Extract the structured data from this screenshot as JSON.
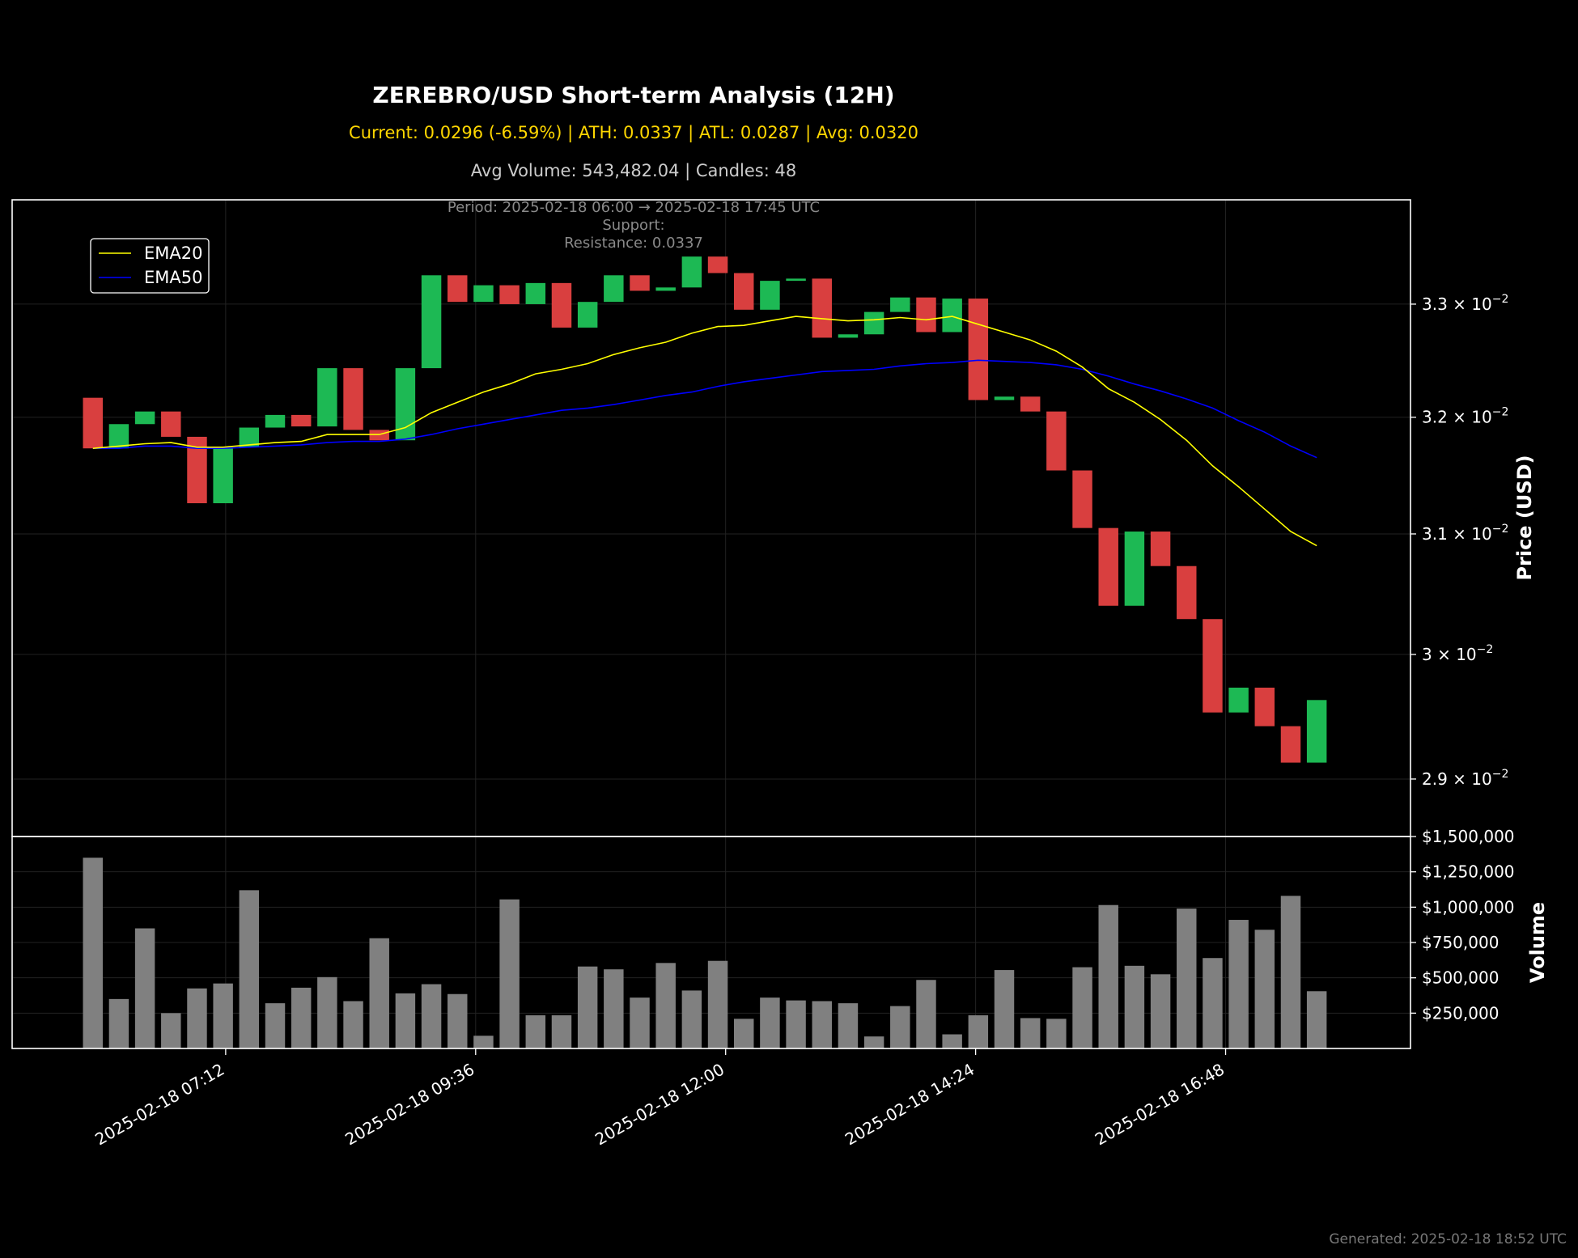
{
  "title": "ZEREBRO/USD Short-term Analysis (12H)",
  "subtitle_stats": "Current: 0.0296 (-6.59%) | ATH: 0.0337 | ATL: 0.0287 | Avg: 0.0320",
  "subtitle_volume": "Avg Volume: 543,482.04 | Candles: 48",
  "annotation": {
    "period": "Period: 2025-02-18 06:00 → 2025-02-18 17:45 UTC",
    "support": "Support:",
    "resistance": "Resistance: 0.0337"
  },
  "footer": "Generated: 2025-02-18 18:52 UTC",
  "colors": {
    "background": "#000000",
    "up": "#1db954",
    "down": "#d93f3f",
    "ema20": "#ffff00",
    "ema50": "#0000ff",
    "volume": "#808080",
    "title": "#ffffff",
    "stats": "#ffd700"
  },
  "chart_data": [
    {
      "type": "candlestick",
      "ylabel": "Price (USD)",
      "yscale": "log",
      "ylim": [
        0.02855,
        0.03395
      ],
      "xlim": [
        -3.1,
        50.6
      ],
      "y_ticks": [
        {
          "value": 0.029,
          "base": "2.9",
          "exp": "−2"
        },
        {
          "value": 0.03,
          "base": "3",
          "exp": "−2"
        },
        {
          "value": 0.031,
          "base": "3.1",
          "exp": "−2"
        },
        {
          "value": 0.032,
          "base": "3.2",
          "exp": "−2"
        },
        {
          "value": 0.033,
          "base": "3.3",
          "exp": "−2"
        }
      ],
      "x_ticks": [
        {
          "pos": 5.1,
          "label": "2025-02-18 07:12"
        },
        {
          "pos": 14.7,
          "label": "2025-02-18 09:36"
        },
        {
          "pos": 24.3,
          "label": "2025-02-18 12:00"
        },
        {
          "pos": 33.9,
          "label": "2025-02-18 14:24"
        },
        {
          "pos": 43.5,
          "label": "2025-02-18 16:48"
        }
      ],
      "legend": [
        "EMA20",
        "EMA50"
      ],
      "legend_position": "upper-left",
      "grid": true,
      "candles": [
        {
          "o": 0.03217,
          "c": 0.03173
        },
        {
          "o": 0.03173,
          "c": 0.03194
        },
        {
          "o": 0.03194,
          "c": 0.03205
        },
        {
          "o": 0.03205,
          "c": 0.03183
        },
        {
          "o": 0.03183,
          "c": 0.03126
        },
        {
          "o": 0.03126,
          "c": 0.03174
        },
        {
          "o": 0.03174,
          "c": 0.03191
        },
        {
          "o": 0.03191,
          "c": 0.03202
        },
        {
          "o": 0.03202,
          "c": 0.03192
        },
        {
          "o": 0.03192,
          "c": 0.03243
        },
        {
          "o": 0.03243,
          "c": 0.03189
        },
        {
          "o": 0.03189,
          "c": 0.0318
        },
        {
          "o": 0.0318,
          "c": 0.03243
        },
        {
          "o": 0.03243,
          "c": 0.03326
        },
        {
          "o": 0.03326,
          "c": 0.03302
        },
        {
          "o": 0.03302,
          "c": 0.03317
        },
        {
          "o": 0.03317,
          "c": 0.033
        },
        {
          "o": 0.033,
          "c": 0.03319
        },
        {
          "o": 0.03319,
          "c": 0.03279
        },
        {
          "o": 0.03279,
          "c": 0.03302
        },
        {
          "o": 0.03302,
          "c": 0.03326
        },
        {
          "o": 0.03326,
          "c": 0.03312
        },
        {
          "o": 0.03312,
          "c": 0.03315
        },
        {
          "o": 0.03315,
          "c": 0.03343
        },
        {
          "o": 0.03343,
          "c": 0.03328
        },
        {
          "o": 0.03328,
          "c": 0.03295
        },
        {
          "o": 0.03295,
          "c": 0.03321
        },
        {
          "o": 0.03321,
          "c": 0.03323
        },
        {
          "o": 0.03323,
          "c": 0.0327
        },
        {
          "o": 0.0327,
          "c": 0.03273
        },
        {
          "o": 0.03273,
          "c": 0.03293
        },
        {
          "o": 0.03293,
          "c": 0.03306
        },
        {
          "o": 0.03306,
          "c": 0.03275
        },
        {
          "o": 0.03275,
          "c": 0.03305
        },
        {
          "o": 0.03305,
          "c": 0.03215
        },
        {
          "o": 0.03215,
          "c": 0.03218
        },
        {
          "o": 0.03218,
          "c": 0.03205
        },
        {
          "o": 0.03205,
          "c": 0.03154
        },
        {
          "o": 0.03154,
          "c": 0.03105
        },
        {
          "o": 0.03105,
          "c": 0.0304
        },
        {
          "o": 0.0304,
          "c": 0.03102
        },
        {
          "o": 0.03102,
          "c": 0.03073
        },
        {
          "o": 0.03073,
          "c": 0.03029
        },
        {
          "o": 0.03029,
          "c": 0.02953
        },
        {
          "o": 0.02953,
          "c": 0.02973
        },
        {
          "o": 0.02973,
          "c": 0.02942
        },
        {
          "o": 0.02942,
          "c": 0.02913
        },
        {
          "o": 0.02913,
          "c": 0.02963
        }
      ],
      "ema20": [
        0.03173,
        0.03175,
        0.03177,
        0.03178,
        0.03174,
        0.03174,
        0.03176,
        0.03178,
        0.03179,
        0.03185,
        0.03185,
        0.03185,
        0.03191,
        0.03204,
        0.03213,
        0.03222,
        0.03229,
        0.03238,
        0.03242,
        0.03247,
        0.03255,
        0.03261,
        0.03266,
        0.03274,
        0.0328,
        0.03281,
        0.03285,
        0.03289,
        0.03287,
        0.03285,
        0.03286,
        0.03288,
        0.03286,
        0.03289,
        0.03282,
        0.03275,
        0.03268,
        0.03258,
        0.03244,
        0.03225,
        0.03213,
        0.03198,
        0.0318,
        0.03158,
        0.0314,
        0.03121,
        0.03102,
        0.0309
      ],
      "ema50": [
        0.03173,
        0.03173,
        0.03175,
        0.03175,
        0.03173,
        0.03173,
        0.03174,
        0.03175,
        0.03176,
        0.03178,
        0.03179,
        0.03179,
        0.03181,
        0.03185,
        0.0319,
        0.03194,
        0.03198,
        0.03202,
        0.03206,
        0.03208,
        0.03211,
        0.03215,
        0.03219,
        0.03222,
        0.03227,
        0.03231,
        0.03234,
        0.03237,
        0.0324,
        0.03241,
        0.03242,
        0.03245,
        0.03247,
        0.03248,
        0.0325,
        0.03249,
        0.03248,
        0.03246,
        0.03242,
        0.03236,
        0.03229,
        0.03223,
        0.03216,
        0.03208,
        0.03197,
        0.03187,
        0.03175,
        0.03165
      ]
    },
    {
      "type": "bar",
      "ylabel": "Volume",
      "ylim": [
        0,
        1500000
      ],
      "y_ticks": [
        {
          "value": 250000,
          "label": "$250,000"
        },
        {
          "value": 500000,
          "label": "$500,000"
        },
        {
          "value": 750000,
          "label": "$750,000"
        },
        {
          "value": 1000000,
          "label": "$1,000,000"
        },
        {
          "value": 1250000,
          "label": "$1,250,000"
        },
        {
          "value": 1500000,
          "label": "$1,500,000"
        }
      ],
      "grid": true,
      "values": [
        1350000,
        350000,
        850000,
        250000,
        425000,
        460000,
        1120000,
        320000,
        430000,
        505000,
        335000,
        780000,
        390000,
        455000,
        385000,
        90000,
        1055000,
        235000,
        235000,
        580000,
        560000,
        360000,
        605000,
        410000,
        620000,
        210000,
        360000,
        340000,
        335000,
        320000,
        85000,
        300000,
        485000,
        100000,
        235000,
        555000,
        215000,
        210000,
        575000,
        1015000,
        585000,
        525000,
        990000,
        640000,
        910000,
        840000,
        1080000,
        405000
      ]
    }
  ]
}
